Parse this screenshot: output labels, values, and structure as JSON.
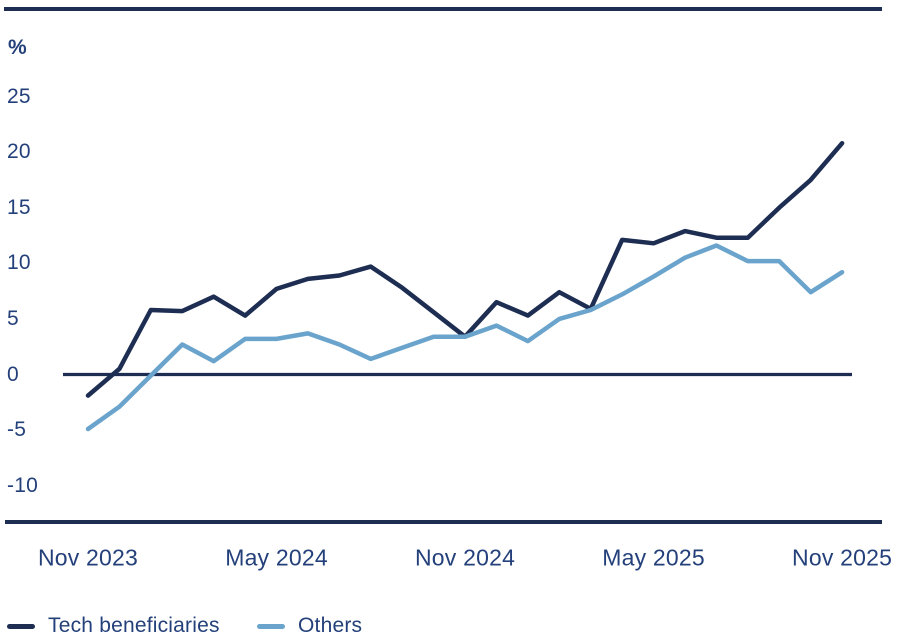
{
  "colors": {
    "navy_line": "#1d2e52",
    "light_blue_line": "#6aa4cc",
    "text_navy": "#24407a",
    "background": "#ffffff"
  },
  "chart_data": {
    "type": "line",
    "title": "",
    "ylabel": "%",
    "xlabel": "",
    "grid": false,
    "baseline": 0,
    "ylim": [
      -12,
      27
    ],
    "y_ticks": [
      25,
      20,
      15,
      10,
      5,
      0,
      -5,
      -10
    ],
    "x": [
      "Nov 2023",
      "Dec 2023",
      "Jan 2024",
      "Feb 2024",
      "Mar 2024",
      "Apr 2024",
      "May 2024",
      "Jun 2024",
      "Jul 2024",
      "Aug 2024",
      "Sep 2024",
      "Oct 2024",
      "Nov 2024",
      "Dec 2024",
      "Jan 2025",
      "Feb 2025",
      "Mar 2025",
      "Apr 2025",
      "May 2025",
      "Jun 2025",
      "Jul 2025",
      "Aug 2025",
      "Sep 2025",
      "Oct 2025",
      "Nov 2025"
    ],
    "x_tick_labels": [
      "Nov 2023",
      "May 2024",
      "Nov 2024",
      "May 2025",
      "Nov 2025"
    ],
    "x_tick_indices": [
      0,
      6,
      12,
      18,
      24
    ],
    "legend_position": "bottom-left",
    "series": [
      {
        "name": "Tech beneficiaries",
        "color": "#1d2e52",
        "values": [
          -1.9,
          0.5,
          5.8,
          5.7,
          7.0,
          5.3,
          7.7,
          8.6,
          8.9,
          9.7,
          7.8,
          5.6,
          3.4,
          6.5,
          5.3,
          7.4,
          5.9,
          12.1,
          11.8,
          12.9,
          12.3,
          12.3,
          15.0,
          17.5,
          20.8
        ]
      },
      {
        "name": "Others",
        "color": "#6aa4cc",
        "values": [
          -4.9,
          -2.9,
          -0.1,
          2.7,
          1.2,
          3.2,
          3.2,
          3.7,
          2.7,
          1.4,
          2.4,
          3.4,
          3.4,
          4.4,
          3.0,
          5.0,
          5.8,
          7.2,
          8.8,
          10.5,
          11.6,
          10.2,
          10.2,
          7.4,
          9.2
        ]
      }
    ]
  }
}
